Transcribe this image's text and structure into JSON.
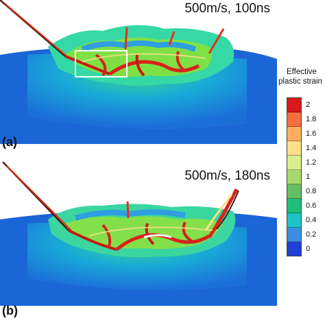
{
  "panels": [
    {
      "label": "(a)",
      "caption": "500m/s, 100ns"
    },
    {
      "label": "(b)",
      "caption": "500m/s, 180ns"
    }
  ],
  "legend": {
    "title_line1": "Effective",
    "title_line2": "plastic strain",
    "ticks": [
      "2",
      "1.8",
      "1.6",
      "1.4",
      "1.2",
      "1",
      "0.8",
      "0.6",
      "0.4",
      "0.2",
      "0"
    ],
    "colors": [
      "#d7191c",
      "#f46d43",
      "#fdae61",
      "#fee08b",
      "#d9ef8b",
      "#a6d96a",
      "#66bd63",
      "#1dbf7a",
      "#1bc3c9",
      "#3a8fe0",
      "#1f3fd6"
    ]
  }
}
